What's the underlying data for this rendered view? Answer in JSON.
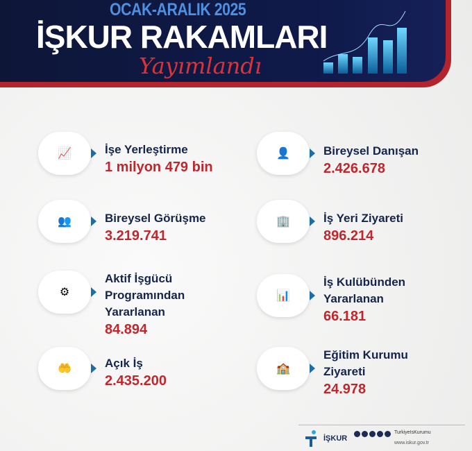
{
  "header": {
    "period": "OCAK-ARALIK 2025",
    "title": "İŞKUR RAKAMLARI",
    "script": "Yayımlandı"
  },
  "colors": {
    "navy": "#0f1a4a",
    "red": "#c0272d",
    "accent": "#1b6fa6"
  },
  "items": [
    {
      "icon": "growth-chart-gear-icon",
      "label": "İşe Yerleştirme",
      "value": "1 milyon 479 bin"
    },
    {
      "icon": "consultant-laptop-icon",
      "label": "Bireysel Danışan",
      "value": "2.426.678"
    },
    {
      "icon": "meeting-table-icon",
      "label": "Bireysel Görüşme",
      "value": "3.219.741"
    },
    {
      "icon": "buildings-icon",
      "label": "İş Yeri Ziyareti",
      "value": "896.214"
    },
    {
      "icon": "cycle-gear-icon",
      "label": "Aktif İşgücü Programından Yararlanan",
      "value": "84.894"
    },
    {
      "icon": "presentation-audience-icon",
      "label": "İş Kulübünden Yararlanan",
      "value": "66.181"
    },
    {
      "icon": "hand-chart-icon",
      "label": "Açık İş",
      "value": "2.435.200"
    },
    {
      "icon": "school-building-people-icon",
      "label": "Eğitim Kurumu Ziyareti",
      "value": "24.978"
    }
  ],
  "footer": {
    "logo": "İŞKUR",
    "handle": "TurkiyeIsKurumu",
    "website": "www.iskur.gov.tr"
  }
}
